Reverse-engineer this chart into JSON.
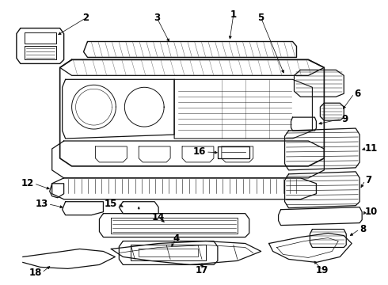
{
  "background_color": "#ffffff",
  "line_color": "#111111",
  "text_color": "#000000",
  "fig_width": 4.9,
  "fig_height": 3.6,
  "dpi": 100
}
